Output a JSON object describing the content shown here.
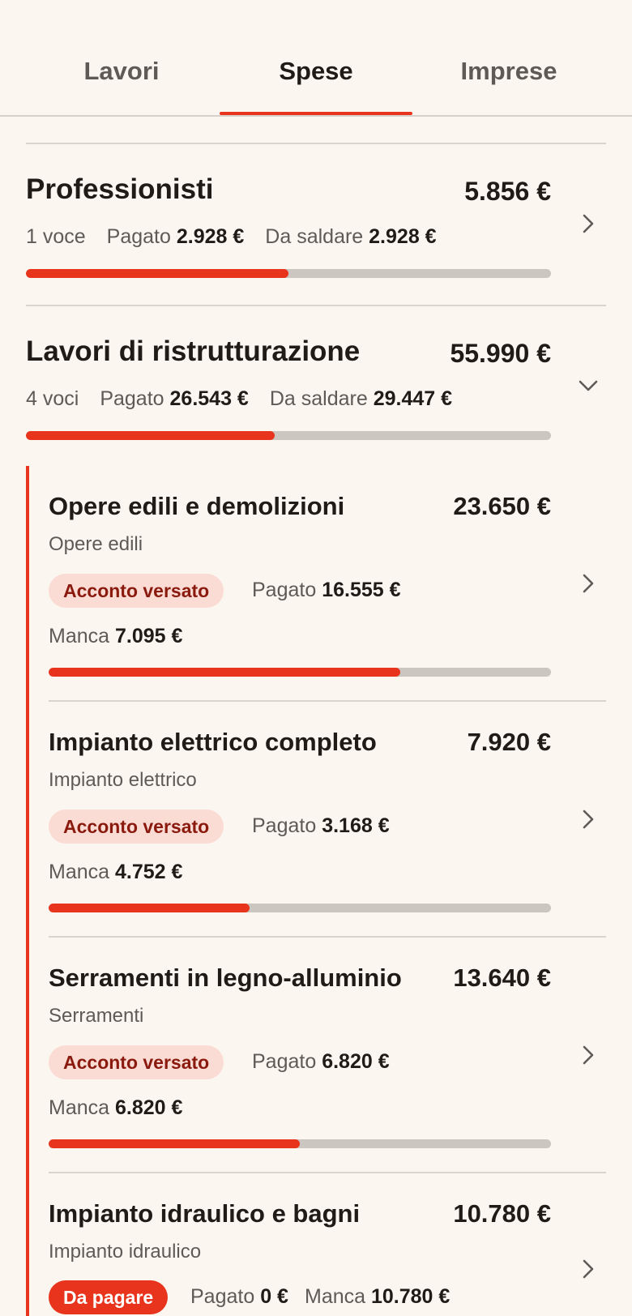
{
  "tabs": [
    {
      "label": "Lavori"
    },
    {
      "label": "Spese"
    },
    {
      "label": "Imprese"
    }
  ],
  "active_tab": "Spese",
  "colors": {
    "accent": "#e8341c",
    "track": "#cbc6c0",
    "badge_bg": "#fbdcd5",
    "badge_text": "#8a1a0e",
    "background": "#fbf6f0"
  },
  "groups": [
    {
      "title": "Professionisti",
      "amount": "5.856 €",
      "count": "1 voce",
      "paid_label": "Pagato",
      "paid": "2.928 €",
      "due_label": "Da saldare",
      "due": "2.928 €",
      "progress": 0.5,
      "chevron": "chevron-right-icon"
    },
    {
      "title": "Lavori di ristrutturazione",
      "amount": "55.990 €",
      "count": "4 voci",
      "paid_label": "Pagato",
      "paid": "26.543 €",
      "due_label": "Da saldare",
      "due": "29.447 €",
      "progress": 0.474,
      "chevron": "chevron-down-icon"
    }
  ],
  "items": [
    {
      "title": "Opere edili e demolizioni",
      "amount": "23.650 €",
      "category": "Opere edili",
      "badge": "Acconto versato",
      "paid_label": "Pagato",
      "paid": "16.555 €",
      "missing_label": "Manca",
      "missing": "7.095 €",
      "progress": 0.7
    },
    {
      "title": "Impianto elettrico completo",
      "amount": "7.920 €",
      "category": "Impianto elettrico",
      "badge": "Acconto versato",
      "paid_label": "Pagato",
      "paid": "3.168 €",
      "missing_label": "Manca",
      "missing": "4.752 €",
      "progress": 0.4
    },
    {
      "title": "Serramenti in legno-alluminio",
      "amount": "13.640 €",
      "category": "Serramenti",
      "badge": "Acconto versato",
      "paid_label": "Pagato",
      "paid": "6.820 €",
      "missing_label": "Manca",
      "missing": "6.820 €",
      "progress": 0.5
    },
    {
      "title": "Impianto idraulico e bagni",
      "amount": "10.780 €",
      "category": "Impianto idraulico",
      "badge": "Da pagare",
      "paid_label": "Pagato",
      "paid": "0 €",
      "missing_label": "Manca",
      "missing": "10.780 €",
      "progress": 0
    }
  ]
}
